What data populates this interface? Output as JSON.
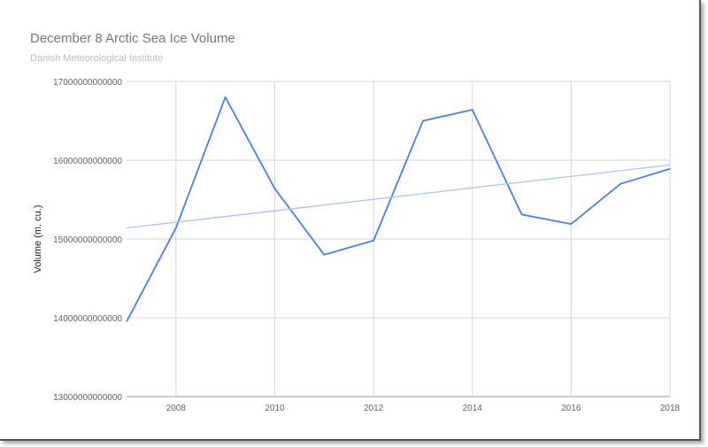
{
  "chart_data": {
    "type": "line",
    "title": "December 8 Arctic Sea Ice Volume",
    "subtitle": "Danish Meteorological Institute",
    "xlabel": "",
    "ylabel": "Volume (m. cu.)",
    "x": [
      2007,
      2008,
      2009,
      2010,
      2011,
      2012,
      2013,
      2014,
      2015,
      2016,
      2017,
      2018
    ],
    "series": [
      {
        "name": "Volume",
        "color": "#4a7ee8",
        "values": [
          13950000000000,
          15140000000000,
          16800000000000,
          15640000000000,
          14800000000000,
          14980000000000,
          16500000000000,
          16640000000000,
          15310000000000,
          15190000000000,
          15700000000000,
          15890000000000
        ]
      },
      {
        "name": "Trendline",
        "color": "#a9c4f5",
        "values": [
          15140000000000,
          15940000000000
        ],
        "x": [
          2007,
          2018
        ]
      }
    ],
    "xlim": [
      2007,
      2018
    ],
    "ylim": [
      13000000000000,
      17000000000000
    ],
    "xticks": [
      "2008",
      "2010",
      "2012",
      "2014",
      "2016",
      "2018"
    ],
    "yticks": [
      "13000000000000",
      "14000000000000",
      "15000000000000",
      "16000000000000",
      "17000000000000"
    ],
    "grid": true
  }
}
